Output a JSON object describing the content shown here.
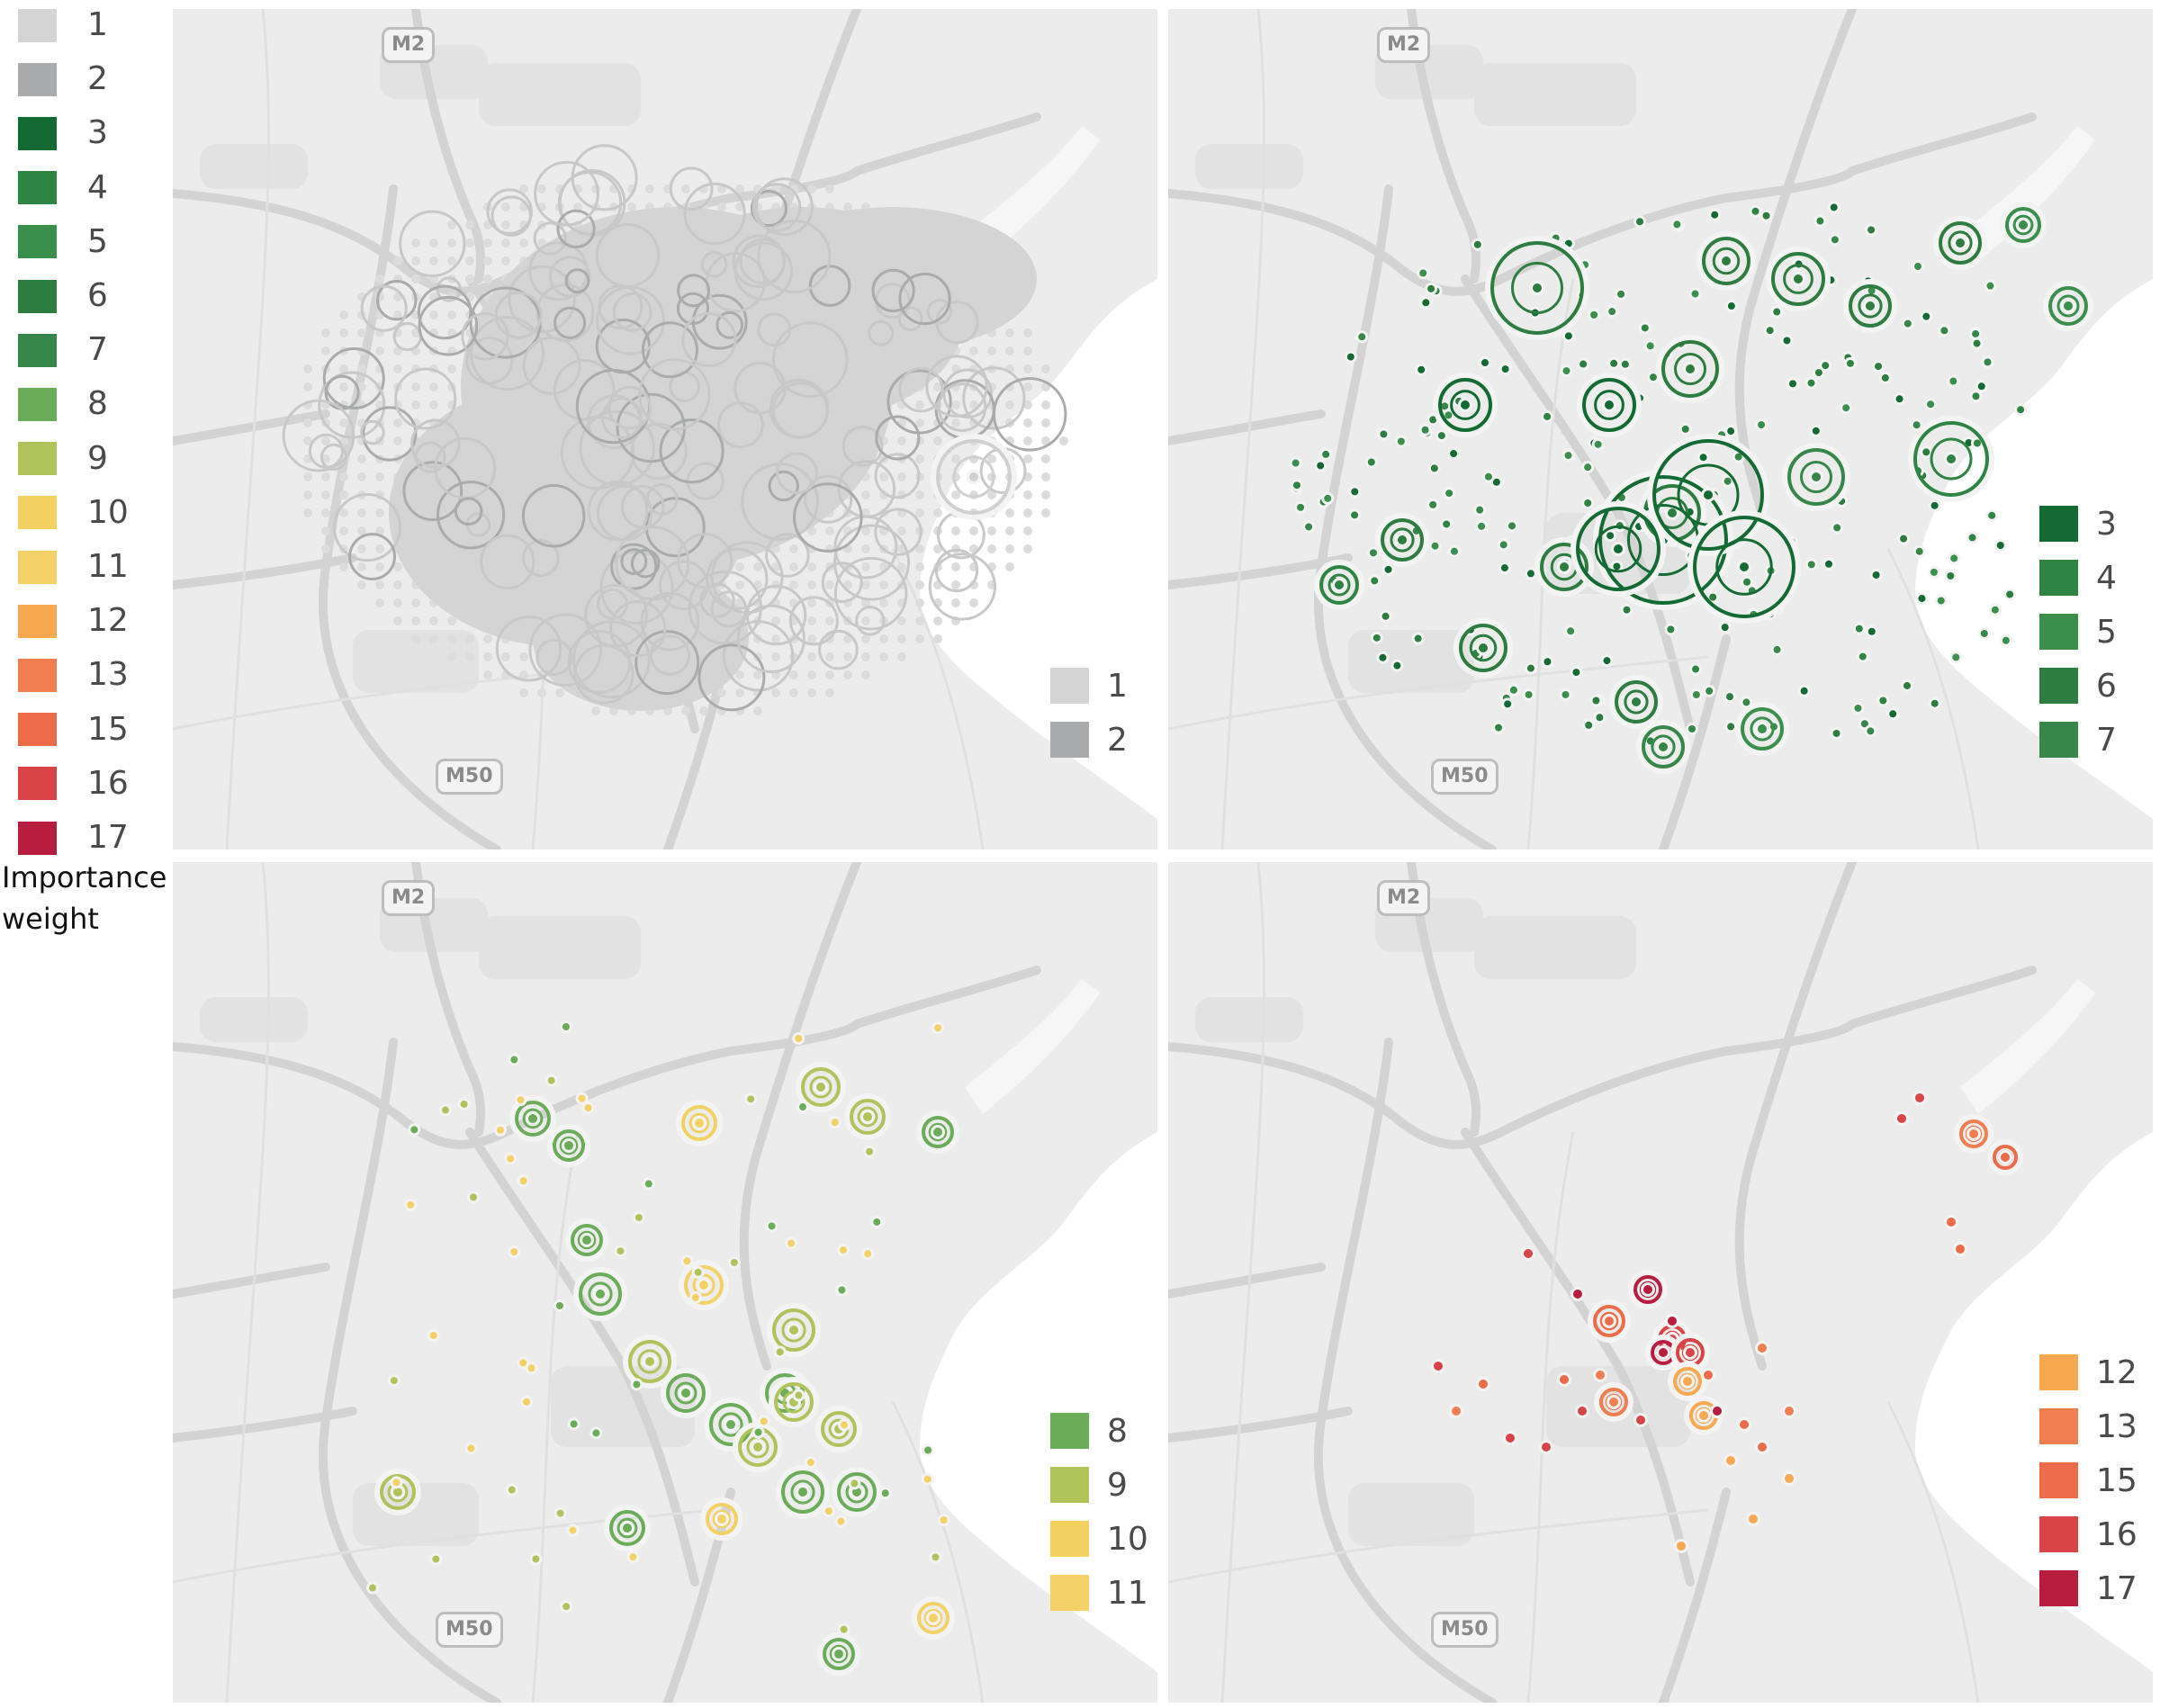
{
  "legend": {
    "title_line1": "Importance",
    "title_line2": "weight",
    "items": [
      {
        "label": "1",
        "color": "#d4d4d4"
      },
      {
        "label": "2",
        "color": "#a9abac"
      },
      {
        "label": "3",
        "color": "#136b33"
      },
      {
        "label": "4",
        "color": "#2e8543"
      },
      {
        "label": "5",
        "color": "#3a8f4c"
      },
      {
        "label": "6",
        "color": "#2d7d40"
      },
      {
        "label": "7",
        "color": "#37874a"
      },
      {
        "label": "8",
        "color": "#6aac58"
      },
      {
        "label": "9",
        "color": "#b0c35b"
      },
      {
        "label": "10",
        "color": "#f2d062"
      },
      {
        "label": "11",
        "color": "#f4d167"
      },
      {
        "label": "12",
        "color": "#f8a850"
      },
      {
        "label": "13",
        "color": "#f17e50"
      },
      {
        "label": "15",
        "color": "#ec6c4a"
      },
      {
        "label": "16",
        "color": "#d94447"
      },
      {
        "label": "17",
        "color": "#b81d3f"
      }
    ]
  },
  "road_labels": {
    "m2": "M2",
    "m50": "M50"
  },
  "panels": [
    {
      "id": "weights-1-2",
      "legend": [
        {
          "label": "1",
          "color": "#d4d4d4"
        },
        {
          "label": "2",
          "color": "#a9abac"
        }
      ]
    },
    {
      "id": "weights-3-7",
      "legend": [
        {
          "label": "3",
          "color": "#136b33"
        },
        {
          "label": "4",
          "color": "#2e8543"
        },
        {
          "label": "5",
          "color": "#3a8f4c"
        },
        {
          "label": "6",
          "color": "#2d7d40"
        },
        {
          "label": "7",
          "color": "#37874a"
        }
      ]
    },
    {
      "id": "weights-8-11",
      "legend": [
        {
          "label": "8",
          "color": "#6aac58"
        },
        {
          "label": "9",
          "color": "#b0c35b"
        },
        {
          "label": "10",
          "color": "#f2d062"
        },
        {
          "label": "11",
          "color": "#f4d167"
        }
      ]
    },
    {
      "id": "weights-12-17",
      "legend": [
        {
          "label": "12",
          "color": "#f8a850"
        },
        {
          "label": "13",
          "color": "#f17e50"
        },
        {
          "label": "15",
          "color": "#ec6c4a"
        },
        {
          "label": "16",
          "color": "#d94447"
        },
        {
          "label": "17",
          "color": "#b81d3f"
        }
      ]
    }
  ]
}
